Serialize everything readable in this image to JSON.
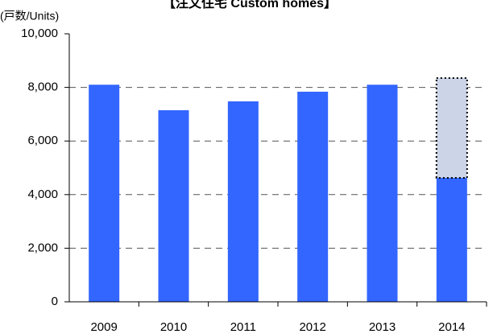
{
  "chart_data": {
    "type": "bar",
    "title": "【注文住宅 Custom homes】",
    "y_axis_label": "(戸数/Units)",
    "categories": [
      "2009",
      "2010",
      "2011",
      "2012",
      "2013",
      "2014"
    ],
    "series": [
      {
        "color": "#3366ff",
        "values": [
          8100,
          7150,
          7480,
          7840,
          8100,
          4625
        ]
      },
      {
        "color": "#ccd5e8",
        "dashed": true,
        "values": [
          null,
          null,
          null,
          null,
          null,
          3725
        ]
      }
    ],
    "stacked": true,
    "ylim": [
      0,
      10000
    ],
    "yticks": [
      0,
      {
        "value": 2000,
        "label": "2,000"
      },
      {
        "value": 4000,
        "label": "4,000"
      },
      {
        "value": 6000,
        "label": "6,000"
      },
      {
        "value": 8000,
        "label": "8,000"
      },
      {
        "value": 10000,
        "label": "10,000"
      }
    ],
    "grid": true
  }
}
